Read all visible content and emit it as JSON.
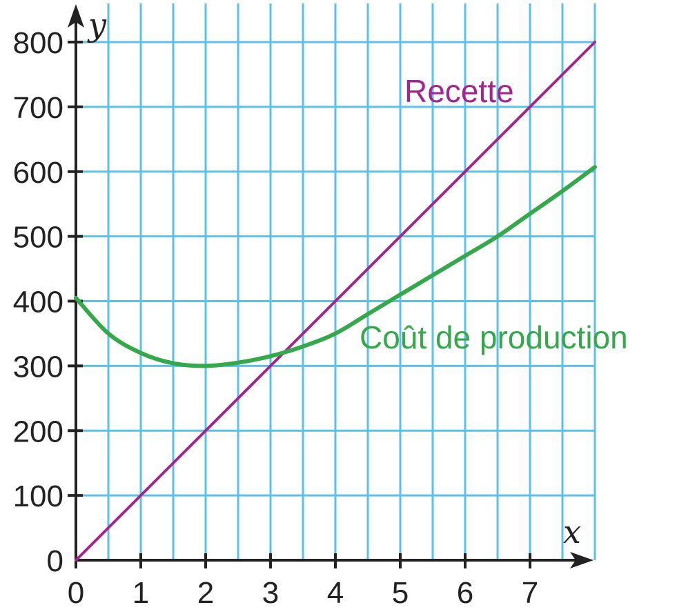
{
  "chart_data": {
    "type": "line",
    "title": "",
    "xlabel": "x",
    "ylabel": "y",
    "xlim": [
      0,
      8
    ],
    "ylim": [
      0,
      800
    ],
    "grid": true,
    "x_ticks": [
      "0",
      "1",
      "2",
      "3",
      "4",
      "5",
      "6",
      "7"
    ],
    "y_ticks": [
      "0",
      "100",
      "200",
      "300",
      "400",
      "500",
      "600",
      "700",
      "800"
    ],
    "series": [
      {
        "name": "Recette",
        "color": "#a3268e",
        "x": [
          0,
          8
        ],
        "y": [
          0,
          800
        ]
      },
      {
        "name": "Coût de production",
        "color": "#34a84a",
        "x": [
          0,
          0.5,
          1,
          1.5,
          2,
          2.5,
          3,
          3.5,
          4,
          4.5,
          5,
          5.5,
          6,
          6.5,
          7,
          7.5,
          8
        ],
        "y": [
          405,
          350,
          320,
          304,
          300,
          305,
          315,
          330,
          350,
          380,
          410,
          440,
          470,
          500,
          535,
          570,
          607
        ]
      }
    ]
  },
  "colors": {
    "grid": "#5bc0ea",
    "axis": "#222222"
  }
}
